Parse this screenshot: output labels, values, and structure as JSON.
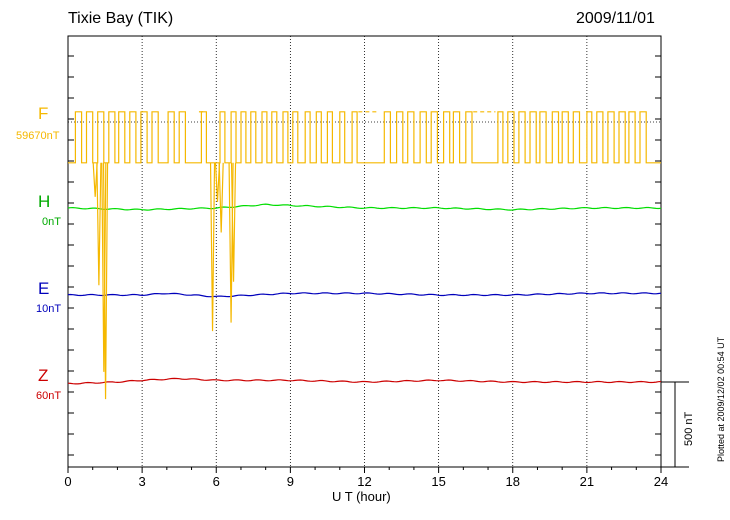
{
  "header": {
    "station": "Tixie Bay (TIK)",
    "date": "2009/11/01"
  },
  "footer": {
    "plotted_note": "Plotted at 2009/12/02 00:54 UT"
  },
  "chart_data": {
    "type": "line",
    "title": "Tixie Bay (TIK)",
    "xlabel": "U T (hour)",
    "xlim": [
      0,
      24
    ],
    "xticks": [
      0,
      3,
      6,
      9,
      12,
      15,
      18,
      21,
      24
    ],
    "grid": "vertical dotted at every 3 hours",
    "scale_bar": {
      "label": "500 nT",
      "value_nT": 500
    },
    "series": [
      {
        "name": "F",
        "baseline_label": "59670nT",
        "baseline_nT": 59670,
        "color": "#f5b800",
        "pattern": "square-wave",
        "high_offset_nT": 60,
        "low_offset_nT": -240,
        "on_periods": [
          [
            0.3,
            0.55
          ],
          [
            0.75,
            1.0
          ],
          [
            1.2,
            1.45
          ],
          [
            1.65,
            1.9
          ],
          [
            2.05,
            2.3
          ],
          [
            2.5,
            2.75
          ],
          [
            2.95,
            3.2
          ],
          [
            3.4,
            3.65
          ],
          [
            4.05,
            4.3
          ],
          [
            4.5,
            4.75
          ],
          [
            5.4,
            5.6
          ],
          [
            6.15,
            6.35
          ],
          [
            6.6,
            6.8
          ],
          [
            7.0,
            7.2
          ],
          [
            7.4,
            7.6
          ],
          [
            7.85,
            8.05
          ],
          [
            8.25,
            8.45
          ],
          [
            8.7,
            8.9
          ],
          [
            9.1,
            9.3
          ],
          [
            9.6,
            9.8
          ],
          [
            10.05,
            10.25
          ],
          [
            10.5,
            10.7
          ],
          [
            11.0,
            11.2
          ],
          [
            11.5,
            11.7
          ],
          [
            12.8,
            13.05
          ],
          [
            13.3,
            13.55
          ],
          [
            13.75,
            14.0
          ],
          [
            14.25,
            14.5
          ],
          [
            14.7,
            14.95
          ],
          [
            15.2,
            15.45
          ],
          [
            15.6,
            15.85
          ],
          [
            16.1,
            16.35
          ],
          [
            17.4,
            17.6
          ],
          [
            17.8,
            18.05
          ],
          [
            18.25,
            18.5
          ],
          [
            18.7,
            18.95
          ],
          [
            19.1,
            19.35
          ],
          [
            19.6,
            19.85
          ],
          [
            20.0,
            20.25
          ],
          [
            20.45,
            20.7
          ],
          [
            21.0,
            21.2
          ],
          [
            21.4,
            21.65
          ],
          [
            21.85,
            22.1
          ],
          [
            22.3,
            22.55
          ],
          [
            22.7,
            22.95
          ],
          [
            23.15,
            23.4
          ]
        ],
        "high_gaps": [
          [
            5.3,
            5.55
          ],
          [
            11.75,
            12.55
          ],
          [
            16.4,
            17.3
          ]
        ],
        "spikes": [
          {
            "x": 1.1,
            "dip_nT": -440
          },
          {
            "x": 1.25,
            "dip_nT": -960
          },
          {
            "x": 1.45,
            "dip_nT": -1470
          },
          {
            "x": 1.52,
            "dip_nT": -1630
          },
          {
            "x": 5.85,
            "dip_nT": -1230
          },
          {
            "x": 6.05,
            "dip_nT": -470
          },
          {
            "x": 6.2,
            "dip_nT": -650
          },
          {
            "x": 6.6,
            "dip_nT": -1180
          },
          {
            "x": 6.7,
            "dip_nT": -940
          }
        ]
      },
      {
        "name": "H",
        "baseline_label": "0nT",
        "baseline_nT": 0,
        "color": "#00dd00",
        "points": [
          [
            0,
            0
          ],
          [
            3,
            -10
          ],
          [
            6,
            0
          ],
          [
            8,
            20
          ],
          [
            10,
            10
          ],
          [
            12,
            0
          ],
          [
            15,
            0
          ],
          [
            18,
            -10
          ],
          [
            21,
            0
          ],
          [
            24,
            0
          ]
        ]
      },
      {
        "name": "E",
        "baseline_label": "10nT",
        "baseline_nT": 10,
        "color": "#0000bb",
        "points": [
          [
            0,
            0
          ],
          [
            3,
            0
          ],
          [
            4,
            10
          ],
          [
            6,
            -10
          ],
          [
            9,
            10
          ],
          [
            12,
            10
          ],
          [
            15,
            0
          ],
          [
            18,
            0
          ],
          [
            21,
            10
          ],
          [
            24,
            10
          ]
        ]
      },
      {
        "name": "Z",
        "baseline_label": "60nT",
        "baseline_nT": 60,
        "color": "#cc0000",
        "points": [
          [
            0,
            -10
          ],
          [
            2,
            0
          ],
          [
            3,
            10
          ],
          [
            4.5,
            20
          ],
          [
            6,
            10
          ],
          [
            9,
            10
          ],
          [
            12,
            0
          ],
          [
            15,
            10
          ],
          [
            18,
            0
          ],
          [
            21,
            0
          ],
          [
            24,
            0
          ]
        ]
      }
    ]
  }
}
